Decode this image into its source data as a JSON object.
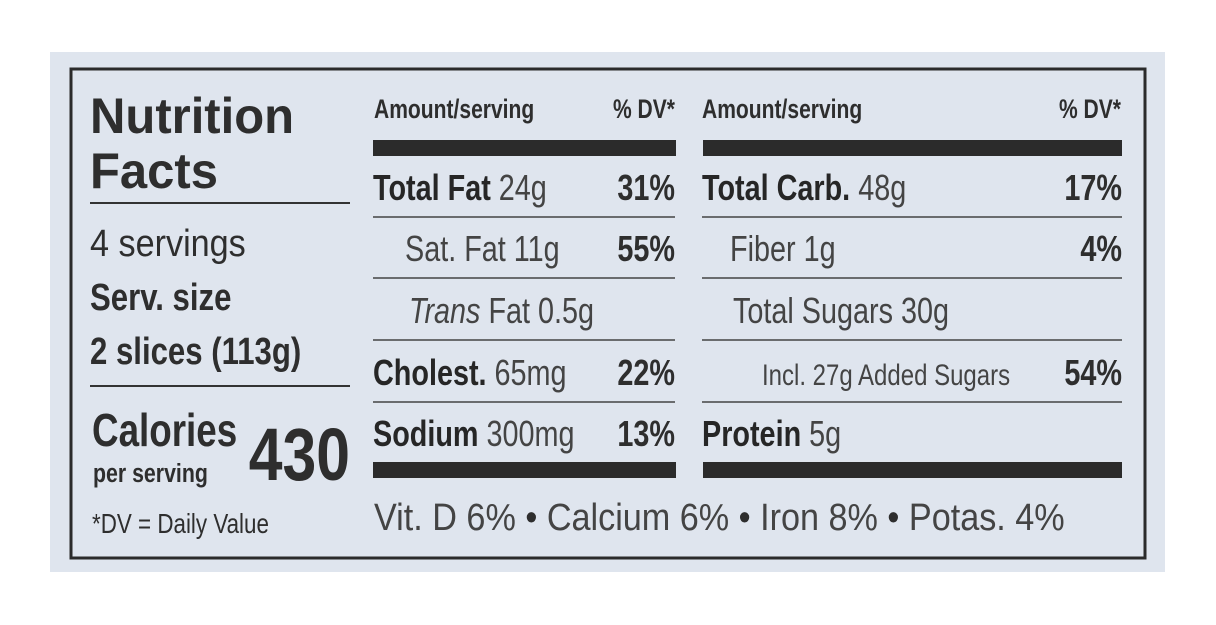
{
  "label": {
    "title": [
      "Nutrition",
      "Facts"
    ],
    "servings": "4 servings",
    "serving_size_label": "Serv. size",
    "serving_size": "2 slices (113g)",
    "calories_label": "Calories",
    "calories_sub": "per serving",
    "calories": "430",
    "dv_note": "*DV = Daily Value",
    "left_header": {
      "amount": "Amount/serving",
      "dv": "% DV*"
    },
    "right_header": {
      "amount": "Amount/serving",
      "dv": "% DV*"
    },
    "left_rows": [
      {
        "bold": "Total Fat",
        "text": "24g",
        "dv": "31%"
      },
      {
        "text": "Sat. Fat 11g",
        "dv": "55%"
      },
      {
        "italic": "Trans",
        "text": "Fat 0.5g"
      },
      {
        "bold": "Cholest.",
        "text": "65mg",
        "dv": "22%"
      },
      {
        "bold": "Sodium",
        "text": "300mg",
        "dv": "13%"
      }
    ],
    "right_rows": [
      {
        "bold": "Total Carb.",
        "text": "48g",
        "dv": "17%"
      },
      {
        "text": "Fiber 1g",
        "dv": "4%"
      },
      {
        "text": "Total Sugars 30g"
      },
      {
        "text": "Incl. 27g Added Sugars",
        "dv": "54%"
      },
      {
        "bold": "Protein",
        "text": "5g"
      }
    ],
    "vitamins": [
      "Vit. D 6%",
      "Calcium 6%",
      "Iron 8%",
      "Potas. 4%"
    ],
    "separator": "•"
  }
}
